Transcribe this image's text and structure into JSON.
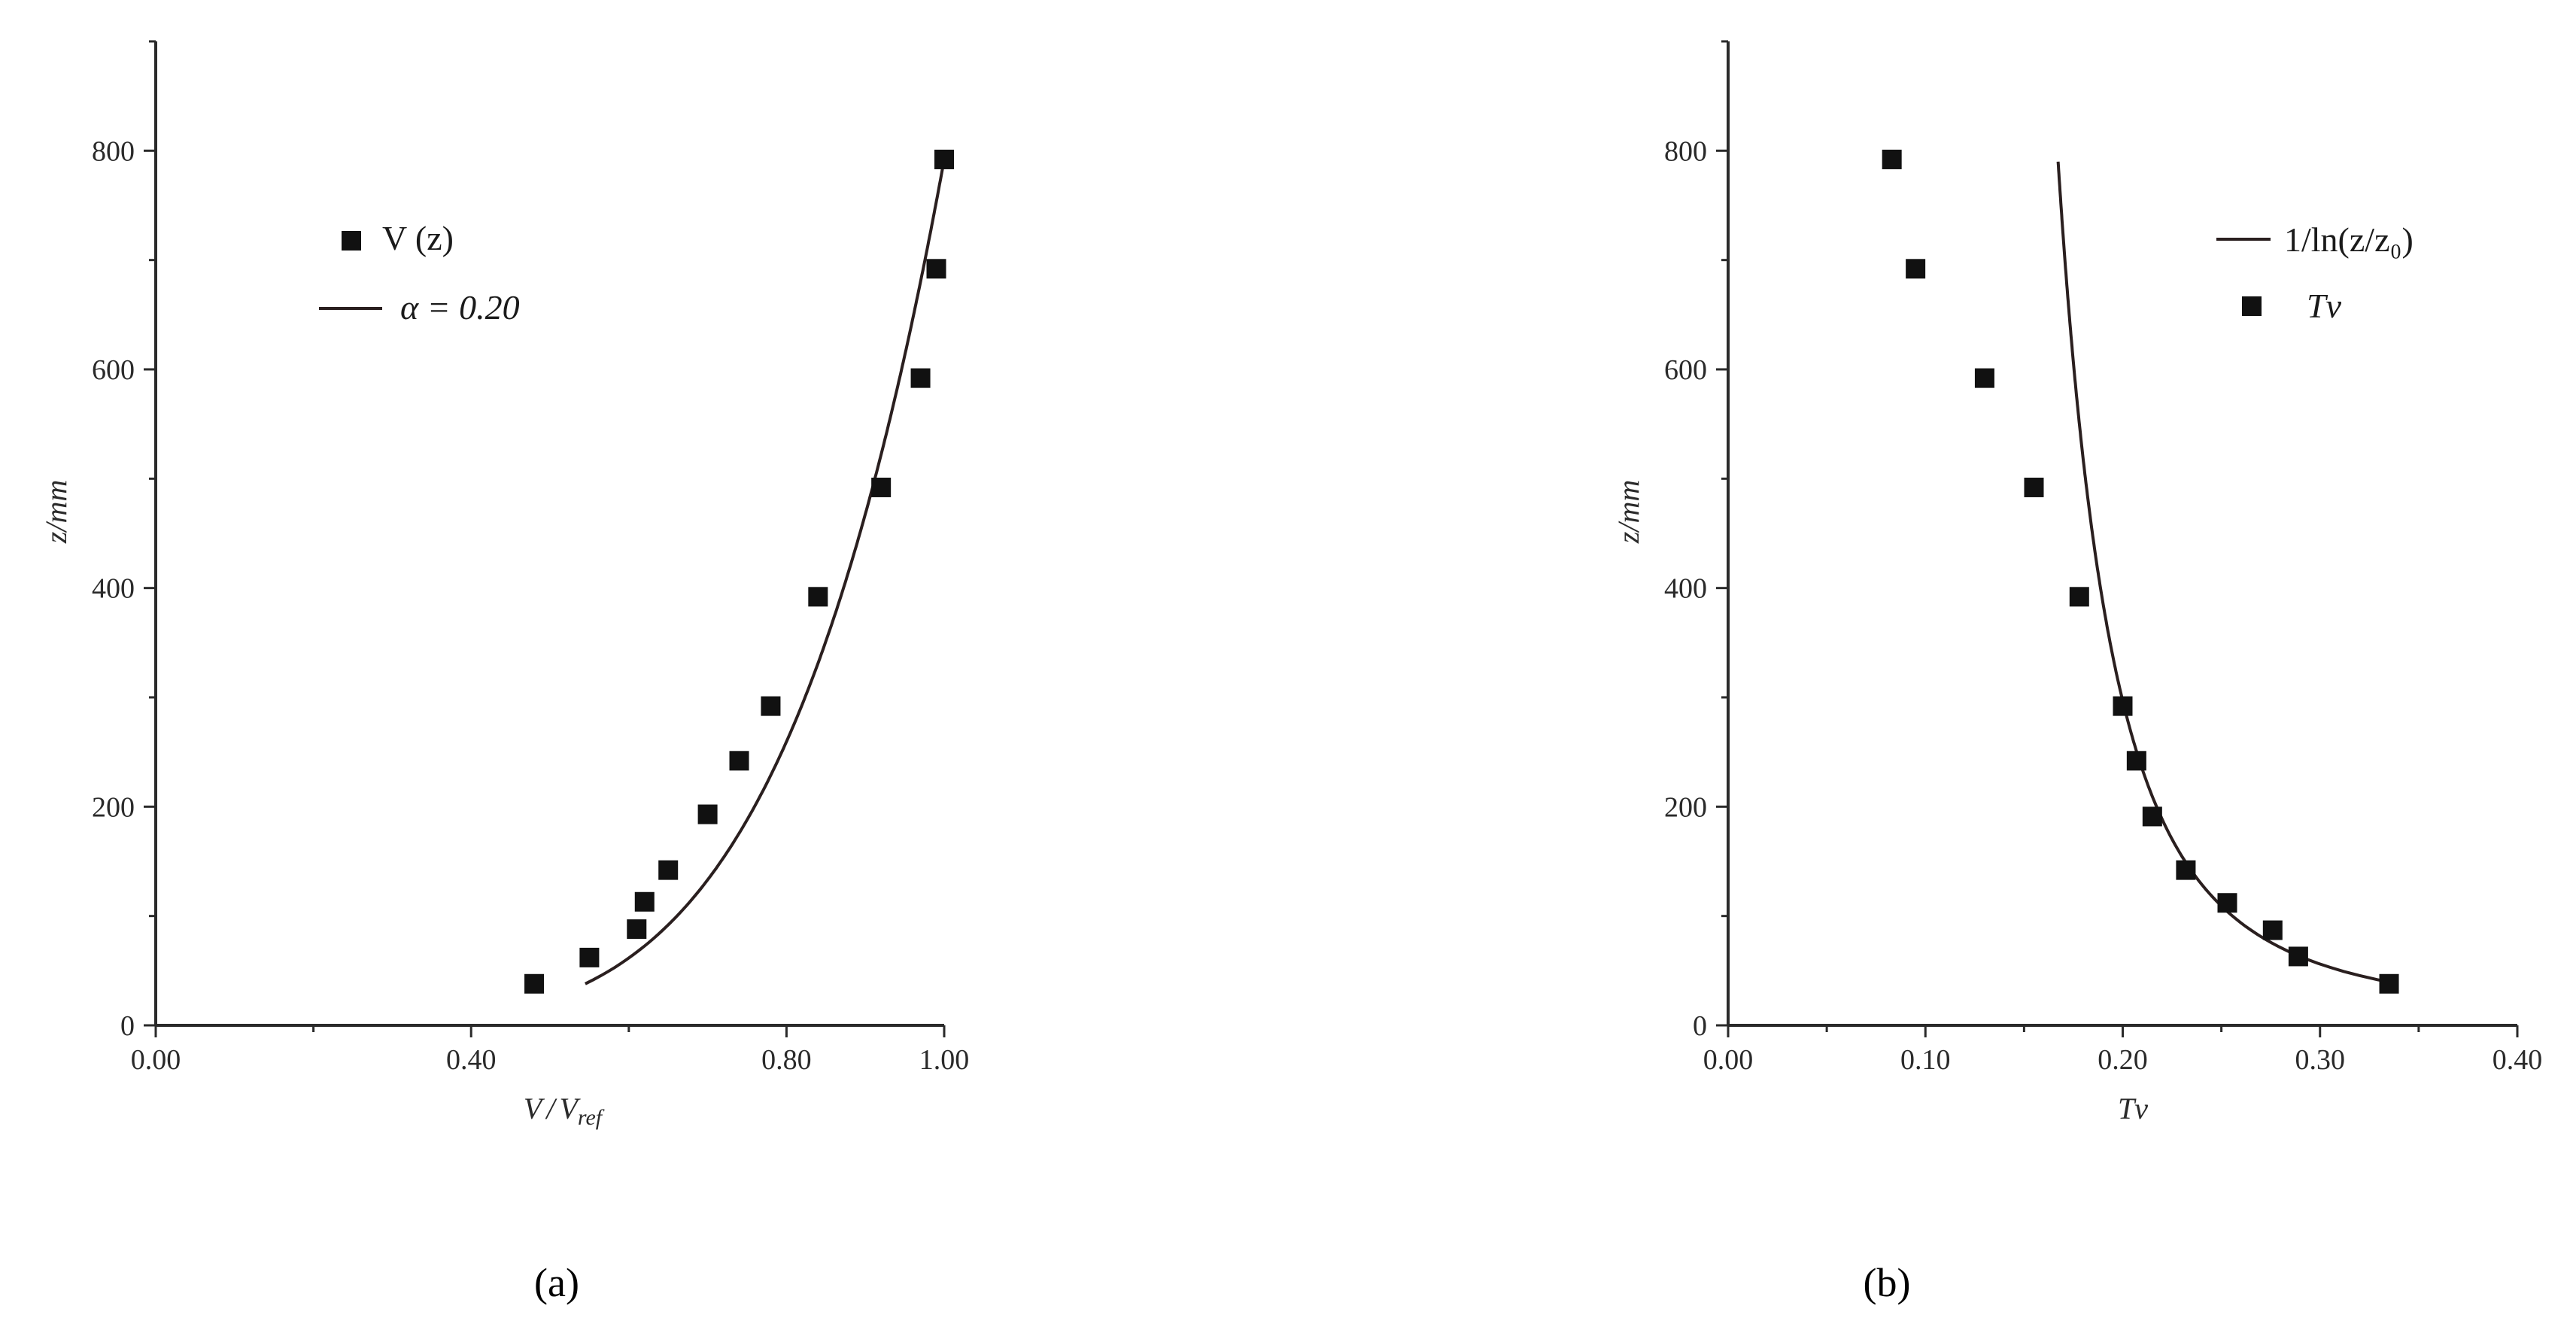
{
  "chart_data": [
    {
      "type": "scatter",
      "panel_label": "(a)",
      "xlabel_main": "V",
      "xlabel_sep": "/",
      "xlabel_den": "V",
      "xlabel_sub": "ref",
      "ylabel": "z/mm",
      "xlim": [
        0.0,
        1.0
      ],
      "ylim": [
        0,
        900
      ],
      "x_ticks": [
        "0.00",
        "0.40",
        "0.80",
        "1.00"
      ],
      "x_tick_values": [
        0.0,
        0.4,
        0.8,
        1.0
      ],
      "y_ticks": [
        "0",
        "200",
        "400",
        "600",
        "800"
      ],
      "y_tick_values": [
        0,
        200,
        400,
        600,
        800
      ],
      "legend_position": "top-left",
      "series": [
        {
          "name": "V (z)",
          "kind": "markers",
          "marker": "square",
          "color": "#111111",
          "points": [
            [
              0.48,
              38
            ],
            [
              0.55,
              62
            ],
            [
              0.61,
              88
            ],
            [
              0.62,
              113
            ],
            [
              0.65,
              142
            ],
            [
              0.7,
              193
            ],
            [
              0.74,
              242
            ],
            [
              0.78,
              292
            ],
            [
              0.84,
              392
            ],
            [
              0.92,
              492
            ],
            [
              0.97,
              592
            ],
            [
              0.99,
              692
            ],
            [
              1.0,
              792
            ]
          ]
        },
        {
          "name": "α = 0.20",
          "kind": "line",
          "color": "#2a1f1f",
          "model": "power_law",
          "alpha": 0.2,
          "ref_x": 1.0,
          "ref_y": 792,
          "y_range": [
            38,
            792
          ]
        }
      ]
    },
    {
      "type": "scatter",
      "panel_label": "(b)",
      "xlabel": "Tv",
      "ylabel": "z/mm",
      "xlim": [
        0.0,
        0.4
      ],
      "ylim": [
        0,
        900
      ],
      "x_ticks": [
        "0.00",
        "0.10",
        "0.20",
        "0.30",
        "0.40"
      ],
      "x_tick_values": [
        0.0,
        0.1,
        0.2,
        0.3,
        0.4
      ],
      "y_ticks": [
        "0",
        "200",
        "400",
        "600",
        "800"
      ],
      "y_tick_values": [
        0,
        200,
        400,
        600,
        800
      ],
      "legend_position": "top-right",
      "series": [
        {
          "name": "1/ln(z/z₀)",
          "kind": "line",
          "color": "#2a1f1f",
          "model": "inverse_log",
          "z0": 2.0,
          "y_range": [
            38,
            790
          ]
        },
        {
          "name": "Tv",
          "kind": "markers",
          "marker": "square",
          "color": "#111111",
          "points": [
            [
              0.335,
              38
            ],
            [
              0.289,
              63
            ],
            [
              0.276,
              87
            ],
            [
              0.253,
              112
            ],
            [
              0.232,
              142
            ],
            [
              0.215,
              191
            ],
            [
              0.207,
              242
            ],
            [
              0.2,
              292
            ],
            [
              0.178,
              392
            ],
            [
              0.155,
              492
            ],
            [
              0.13,
              592
            ],
            [
              0.095,
              692
            ],
            [
              0.083,
              792
            ]
          ]
        }
      ]
    }
  ]
}
